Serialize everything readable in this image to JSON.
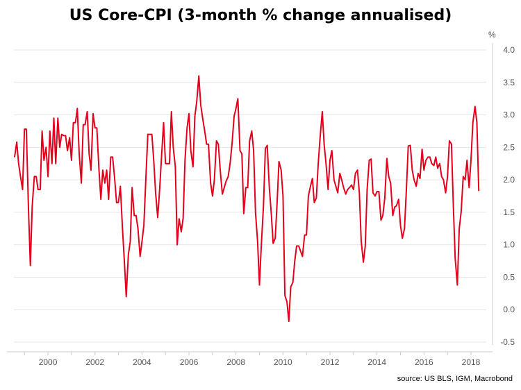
{
  "chart_data": {
    "type": "line",
    "title": "US Core-CPI (3-month % change annualised)",
    "unit_label": "%",
    "source": "source: US BLS, IGM, Macrobond",
    "xlim": [
      1998.55,
      2018.65
    ],
    "ylim": [
      -0.5,
      4.0
    ],
    "yticks": [
      -0.5,
      0.0,
      0.5,
      1.0,
      1.5,
      2.0,
      2.5,
      3.0,
      3.5,
      4.0
    ],
    "ytick_labels": [
      "-0.5",
      "0.0",
      "0.5",
      "1.0",
      "1.5",
      "2.0",
      "2.5",
      "3.0",
      "3.5",
      "4.0"
    ],
    "xticks": [
      2000,
      2002,
      2004,
      2006,
      2008,
      2010,
      2012,
      2014,
      2016,
      2018
    ],
    "xtick_labels": [
      "2000",
      "2002",
      "2004",
      "2006",
      "2008",
      "2010",
      "2012",
      "2014",
      "2016",
      "2018"
    ],
    "grid": true,
    "colors": {
      "line": "#e3001b",
      "grid": "#e6e6e6",
      "axis": "#cccccc"
    },
    "series": [
      {
        "points": [
          [
            1998.58,
            2.35
          ],
          [
            1998.67,
            2.58
          ],
          [
            1998.75,
            2.25
          ],
          [
            1998.83,
            2.05
          ],
          [
            1998.92,
            1.85
          ],
          [
            1999.0,
            2.78
          ],
          [
            1999.08,
            2.78
          ],
          [
            1999.17,
            1.55
          ],
          [
            1999.25,
            0.68
          ],
          [
            1999.33,
            1.6
          ],
          [
            1999.42,
            2.05
          ],
          [
            1999.5,
            2.05
          ],
          [
            1999.58,
            1.85
          ],
          [
            1999.67,
            1.85
          ],
          [
            1999.75,
            2.75
          ],
          [
            1999.83,
            2.3
          ],
          [
            1999.92,
            2.5
          ],
          [
            2000.0,
            2.05
          ],
          [
            2000.08,
            2.75
          ],
          [
            2000.17,
            2.25
          ],
          [
            2000.25,
            2.95
          ],
          [
            2000.33,
            2.25
          ],
          [
            2000.42,
            2.95
          ],
          [
            2000.5,
            2.5
          ],
          [
            2000.58,
            2.7
          ],
          [
            2000.67,
            2.68
          ],
          [
            2000.75,
            2.68
          ],
          [
            2000.83,
            2.45
          ],
          [
            2000.92,
            2.65
          ],
          [
            2001.0,
            2.3
          ],
          [
            2001.08,
            2.88
          ],
          [
            2001.17,
            2.88
          ],
          [
            2001.25,
            3.1
          ],
          [
            2001.33,
            2.4
          ],
          [
            2001.42,
            1.95
          ],
          [
            2001.5,
            2.85
          ],
          [
            2001.58,
            2.85
          ],
          [
            2001.67,
            3.05
          ],
          [
            2001.75,
            2.4
          ],
          [
            2001.83,
            2.15
          ],
          [
            2001.92,
            3.02
          ],
          [
            2002.0,
            2.8
          ],
          [
            2002.08,
            2.8
          ],
          [
            2002.17,
            2.15
          ],
          [
            2002.25,
            1.7
          ],
          [
            2002.33,
            2.15
          ],
          [
            2002.42,
            1.95
          ],
          [
            2002.5,
            2.15
          ],
          [
            2002.58,
            1.7
          ],
          [
            2002.67,
            2.35
          ],
          [
            2002.75,
            2.35
          ],
          [
            2002.83,
            2.05
          ],
          [
            2002.92,
            1.65
          ],
          [
            2003.0,
            1.65
          ],
          [
            2003.08,
            1.9
          ],
          [
            2003.17,
            1.25
          ],
          [
            2003.25,
            0.75
          ],
          [
            2003.33,
            0.2
          ],
          [
            2003.42,
            0.85
          ],
          [
            2003.5,
            1.05
          ],
          [
            2003.58,
            1.88
          ],
          [
            2003.67,
            1.45
          ],
          [
            2003.75,
            1.45
          ],
          [
            2003.83,
            1.25
          ],
          [
            2003.92,
            0.82
          ],
          [
            2004.0,
            1.05
          ],
          [
            2004.08,
            1.3
          ],
          [
            2004.17,
            2.05
          ],
          [
            2004.25,
            2.7
          ],
          [
            2004.33,
            2.7
          ],
          [
            2004.42,
            2.7
          ],
          [
            2004.5,
            2.3
          ],
          [
            2004.58,
            1.8
          ],
          [
            2004.67,
            1.42
          ],
          [
            2004.75,
            1.85
          ],
          [
            2004.83,
            2.35
          ],
          [
            2004.92,
            2.88
          ],
          [
            2005.0,
            2.25
          ],
          [
            2005.08,
            2.25
          ],
          [
            2005.17,
            2.25
          ],
          [
            2005.25,
            3.05
          ],
          [
            2005.33,
            2.5
          ],
          [
            2005.42,
            2.2
          ],
          [
            2005.5,
            1.0
          ],
          [
            2005.58,
            1.4
          ],
          [
            2005.67,
            1.2
          ],
          [
            2005.75,
            1.4
          ],
          [
            2005.83,
            2.3
          ],
          [
            2005.92,
            2.8
          ],
          [
            2006.0,
            3.02
          ],
          [
            2006.08,
            2.45
          ],
          [
            2006.17,
            2.2
          ],
          [
            2006.25,
            2.98
          ],
          [
            2006.33,
            3.2
          ],
          [
            2006.42,
            3.6
          ],
          [
            2006.5,
            3.15
          ],
          [
            2006.58,
            2.95
          ],
          [
            2006.67,
            2.75
          ],
          [
            2006.75,
            2.55
          ],
          [
            2006.83,
            2.55
          ],
          [
            2006.92,
            1.95
          ],
          [
            2007.0,
            1.75
          ],
          [
            2007.08,
            2.0
          ],
          [
            2007.17,
            2.6
          ],
          [
            2007.25,
            2.55
          ],
          [
            2007.33,
            2.15
          ],
          [
            2007.42,
            1.78
          ],
          [
            2007.5,
            1.88
          ],
          [
            2007.58,
            1.98
          ],
          [
            2007.67,
            2.05
          ],
          [
            2007.75,
            2.25
          ],
          [
            2007.83,
            2.55
          ],
          [
            2007.92,
            2.98
          ],
          [
            2008.0,
            3.1
          ],
          [
            2008.08,
            3.25
          ],
          [
            2008.17,
            2.45
          ],
          [
            2008.25,
            2.4
          ],
          [
            2008.33,
            1.48
          ],
          [
            2008.42,
            1.88
          ],
          [
            2008.5,
            1.88
          ],
          [
            2008.58,
            2.6
          ],
          [
            2008.67,
            2.75
          ],
          [
            2008.75,
            2.45
          ],
          [
            2008.83,
            1.5
          ],
          [
            2008.92,
            1.05
          ],
          [
            2009.0,
            0.38
          ],
          [
            2009.08,
            1.0
          ],
          [
            2009.17,
            1.6
          ],
          [
            2009.25,
            2.48
          ],
          [
            2009.33,
            2.53
          ],
          [
            2009.42,
            1.88
          ],
          [
            2009.5,
            1.5
          ],
          [
            2009.58,
            1.02
          ],
          [
            2009.67,
            1.1
          ],
          [
            2009.75,
            1.65
          ],
          [
            2009.83,
            2.28
          ],
          [
            2009.92,
            2.15
          ],
          [
            2010.0,
            1.75
          ],
          [
            2010.08,
            0.22
          ],
          [
            2010.17,
            0.12
          ],
          [
            2010.25,
            -0.18
          ],
          [
            2010.33,
            0.35
          ],
          [
            2010.42,
            0.42
          ],
          [
            2010.5,
            0.75
          ],
          [
            2010.58,
            0.98
          ],
          [
            2010.67,
            0.98
          ],
          [
            2010.75,
            0.9
          ],
          [
            2010.83,
            0.82
          ],
          [
            2010.92,
            1.15
          ],
          [
            2011.0,
            1.15
          ],
          [
            2011.08,
            1.75
          ],
          [
            2011.17,
            1.9
          ],
          [
            2011.25,
            2.02
          ],
          [
            2011.33,
            1.65
          ],
          [
            2011.42,
            1.72
          ],
          [
            2011.5,
            2.25
          ],
          [
            2011.58,
            2.65
          ],
          [
            2011.67,
            3.05
          ],
          [
            2011.75,
            2.55
          ],
          [
            2011.83,
            2.25
          ],
          [
            2011.92,
            1.85
          ],
          [
            2012.0,
            2.3
          ],
          [
            2012.08,
            2.45
          ],
          [
            2012.17,
            2.0
          ],
          [
            2012.25,
            1.9
          ],
          [
            2012.33,
            1.8
          ],
          [
            2012.42,
            2.1
          ],
          [
            2012.5,
            2.0
          ],
          [
            2012.58,
            1.88
          ],
          [
            2012.67,
            1.78
          ],
          [
            2012.75,
            1.85
          ],
          [
            2012.83,
            1.88
          ],
          [
            2012.92,
            1.92
          ],
          [
            2013.0,
            1.85
          ],
          [
            2013.08,
            2.1
          ],
          [
            2013.17,
            2.15
          ],
          [
            2013.25,
            1.8
          ],
          [
            2013.33,
            1.05
          ],
          [
            2013.42,
            0.73
          ],
          [
            2013.5,
            0.98
          ],
          [
            2013.58,
            1.85
          ],
          [
            2013.67,
            2.3
          ],
          [
            2013.75,
            2.32
          ],
          [
            2013.83,
            1.8
          ],
          [
            2013.92,
            1.75
          ],
          [
            2014.0,
            1.82
          ],
          [
            2014.08,
            1.82
          ],
          [
            2014.17,
            1.38
          ],
          [
            2014.25,
            1.45
          ],
          [
            2014.33,
            1.72
          ],
          [
            2014.42,
            2.33
          ],
          [
            2014.5,
            2.05
          ],
          [
            2014.58,
            1.95
          ],
          [
            2014.67,
            1.45
          ],
          [
            2014.75,
            1.58
          ],
          [
            2014.83,
            1.6
          ],
          [
            2014.92,
            1.7
          ],
          [
            2015.0,
            1.3
          ],
          [
            2015.08,
            1.1
          ],
          [
            2015.17,
            1.25
          ],
          [
            2015.25,
            1.85
          ],
          [
            2015.33,
            2.52
          ],
          [
            2015.42,
            2.53
          ],
          [
            2015.5,
            2.15
          ],
          [
            2015.58,
            2.0
          ],
          [
            2015.67,
            1.9
          ],
          [
            2015.75,
            2.1
          ],
          [
            2015.83,
            2.02
          ],
          [
            2015.92,
            2.47
          ],
          [
            2016.0,
            2.15
          ],
          [
            2016.08,
            2.3
          ],
          [
            2016.17,
            2.35
          ],
          [
            2016.25,
            2.35
          ],
          [
            2016.33,
            2.25
          ],
          [
            2016.42,
            2.22
          ],
          [
            2016.5,
            2.35
          ],
          [
            2016.58,
            2.18
          ],
          [
            2016.67,
            2.25
          ],
          [
            2016.75,
            2.05
          ],
          [
            2016.83,
            2.0
          ],
          [
            2016.92,
            1.8
          ],
          [
            2017.0,
            2.05
          ],
          [
            2017.08,
            2.6
          ],
          [
            2017.17,
            2.55
          ],
          [
            2017.25,
            1.6
          ],
          [
            2017.33,
            0.78
          ],
          [
            2017.42,
            0.38
          ],
          [
            2017.5,
            1.25
          ],
          [
            2017.58,
            1.5
          ],
          [
            2017.67,
            2.05
          ],
          [
            2017.75,
            2.0
          ],
          [
            2017.83,
            2.3
          ],
          [
            2017.92,
            1.88
          ],
          [
            2018.0,
            2.3
          ],
          [
            2018.08,
            2.88
          ],
          [
            2018.17,
            3.13
          ],
          [
            2018.25,
            2.88
          ],
          [
            2018.33,
            1.83
          ]
        ]
      }
    ]
  }
}
